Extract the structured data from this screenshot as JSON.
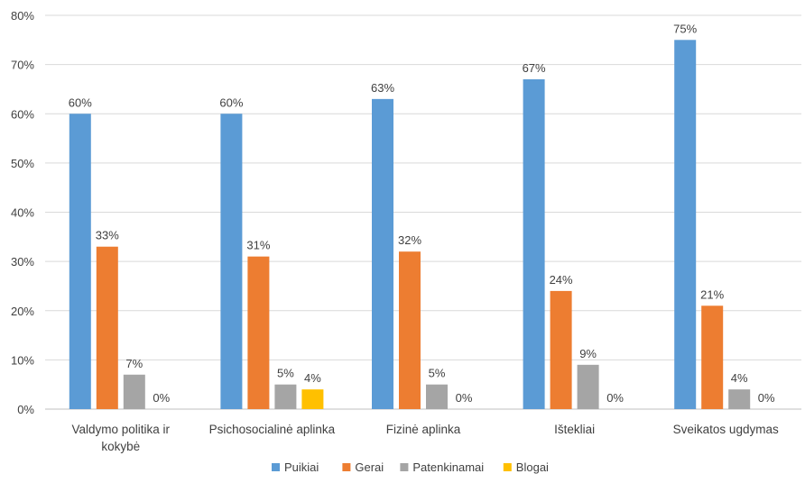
{
  "chart_data": {
    "type": "bar",
    "title": "",
    "xlabel": "",
    "ylabel": "",
    "ylim": [
      0,
      80
    ],
    "y_ticks": [
      "0%",
      "10%",
      "20%",
      "30%",
      "40%",
      "50%",
      "60%",
      "70%",
      "80%"
    ],
    "y_tick_values": [
      0,
      10,
      20,
      30,
      40,
      50,
      60,
      70,
      80
    ],
    "grid": true,
    "legend_position": "bottom",
    "categories": [
      [
        "Valdymo politika ir",
        "kokybė"
      ],
      [
        "Psichosocialinė aplinka"
      ],
      [
        "Fizinė aplinka"
      ],
      [
        "Ištekliai"
      ],
      [
        "Sveikatos ugdymas"
      ]
    ],
    "series": [
      {
        "name": "Puikiai",
        "color": "#5B9BD5",
        "values": [
          60,
          60,
          63,
          67,
          75
        ],
        "labels": [
          "60%",
          "60%",
          "63%",
          "67%",
          "75%"
        ]
      },
      {
        "name": "Gerai",
        "color": "#ED7D31",
        "values": [
          33,
          31,
          32,
          24,
          21
        ],
        "labels": [
          "33%",
          "31%",
          "32%",
          "24%",
          "21%"
        ]
      },
      {
        "name": "Patenkinamai",
        "color": "#A5A5A5",
        "values": [
          7,
          5,
          5,
          9,
          4
        ],
        "labels": [
          "7%",
          "5%",
          "5%",
          "9%",
          "4%"
        ]
      },
      {
        "name": "Blogai",
        "color": "#FFC000",
        "values": [
          0,
          4,
          0,
          0,
          0
        ],
        "labels": [
          "0%",
          "4%",
          "0%",
          "0%",
          "0%"
        ]
      }
    ]
  }
}
